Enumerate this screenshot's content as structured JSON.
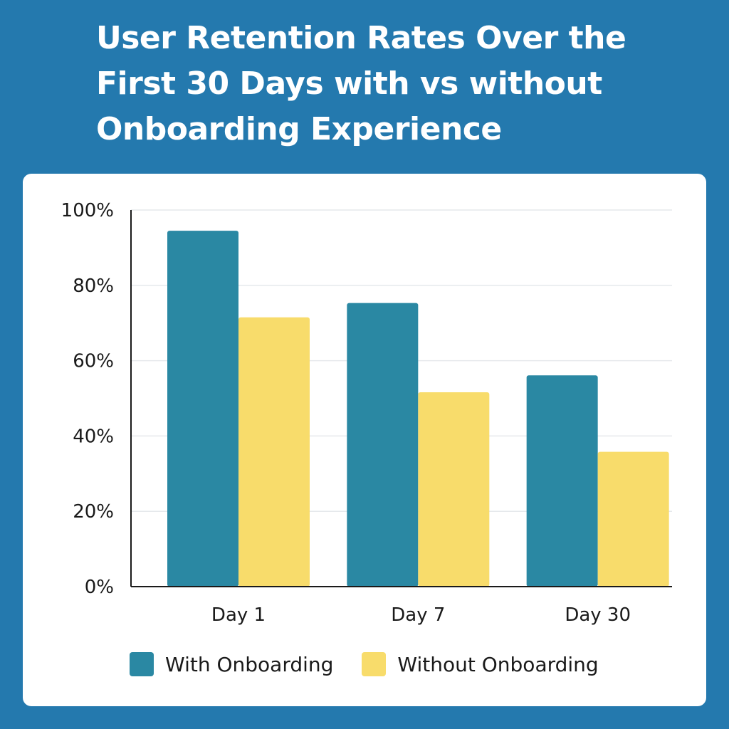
{
  "page": {
    "title": "User Retention Rates Over the First 30 Days with vs without Onboarding Experience",
    "background_color": "#2479ae",
    "card_color": "#ffffff"
  },
  "chart_data": {
    "type": "bar",
    "title": "User Retention Rates Over the First 30 Days with vs without Onboarding Experience",
    "categories": [
      "Day 1",
      "Day 7",
      "Day 30"
    ],
    "series": [
      {
        "name": "With Onboarding",
        "color": "#2a88a3",
        "values": [
          94.5,
          75.3,
          56.1
        ]
      },
      {
        "name": "Without Onboarding",
        "color": "#f8dc6b",
        "values": [
          71.5,
          51.6,
          35.8
        ]
      }
    ],
    "y_ticks": [
      0,
      20,
      40,
      60,
      80,
      100
    ],
    "y_tick_labels": [
      "0%",
      "20%",
      "40%",
      "60%",
      "80%",
      "100%"
    ],
    "ylim": [
      0,
      100
    ],
    "xlabel": "",
    "ylabel": "",
    "grid": true,
    "legend_position": "bottom"
  }
}
